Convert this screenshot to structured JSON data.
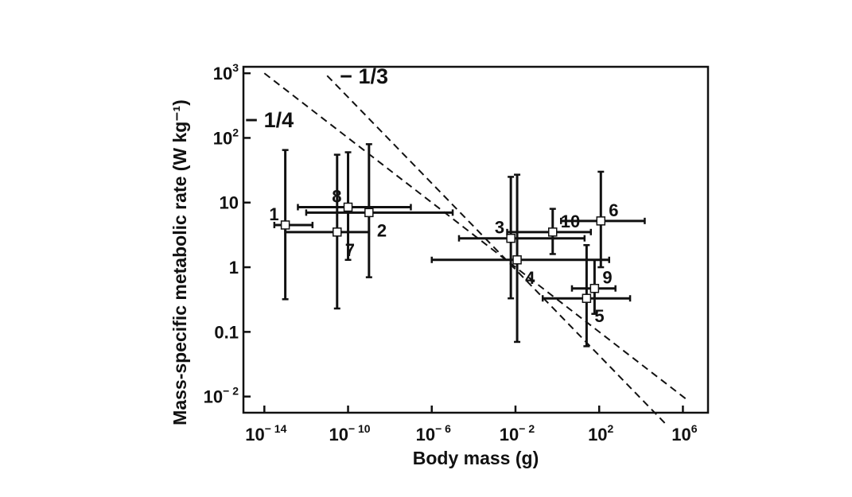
{
  "chart_data": {
    "type": "scatter",
    "title": "",
    "xlabel": "Body mass (g)",
    "ylabel": "Mass-specific metabolic rate (W kg⁻¹)",
    "xscale": "log",
    "yscale": "log",
    "xlim_log10": [
      -15,
      7.2
    ],
    "ylim_log10": [
      -2.25,
      3.1
    ],
    "x_ticks": [
      {
        "log": -14,
        "base": "10",
        "exp": "− 14"
      },
      {
        "log": -10,
        "base": "10",
        "exp": "− 10"
      },
      {
        "log": -6,
        "base": "10",
        "exp": "− 6"
      },
      {
        "log": -2,
        "base": "10",
        "exp": "− 2"
      },
      {
        "log": 2,
        "base": "10",
        "exp": "2"
      },
      {
        "log": 6,
        "base": "10",
        "exp": "6"
      }
    ],
    "y_ticks": [
      {
        "log": 3,
        "base": "10",
        "exp": "3"
      },
      {
        "log": 2,
        "base": "10",
        "exp": "2"
      },
      {
        "log": 1,
        "base": "10",
        "exp": ""
      },
      {
        "log": 0,
        "base": "1",
        "exp": ""
      },
      {
        "log": -1,
        "base": "0.1",
        "exp": ""
      },
      {
        "log": -2,
        "base": "10",
        "exp": "− 2"
      }
    ],
    "points": [
      {
        "label": "1",
        "x": 1e-13,
        "y": 4.5,
        "x_err": [
          3e-14,
          2e-12
        ],
        "y_err": [
          0.32,
          65
        ],
        "label_pos": "upper-left"
      },
      {
        "label": "2",
        "x": 1e-09,
        "y": 7.0,
        "x_err": [
          1e-12,
          1e-05
        ],
        "y_err": [
          0.7,
          80
        ],
        "label_pos": "lower-right"
      },
      {
        "label": "3",
        "x": 0.006,
        "y": 2.8,
        "x_err": [
          2e-05,
          20
        ],
        "y_err": [
          0.33,
          25
        ],
        "label_pos": "upper-left"
      },
      {
        "label": "4",
        "x": 0.012,
        "y": 1.3,
        "x_err": [
          1e-06,
          300
        ],
        "y_err": [
          0.07,
          27
        ],
        "label_pos": "lower-right"
      },
      {
        "label": "5",
        "x": 25,
        "y": 0.33,
        "x_err": [
          0.2,
          3000
        ],
        "y_err": [
          0.06,
          2.2
        ],
        "label_pos": "lower-right"
      },
      {
        "label": "6",
        "x": 120,
        "y": 5.2,
        "x_err": [
          1.5,
          15000
        ],
        "y_err": [
          1.0,
          30
        ],
        "label_pos": "upper-right"
      },
      {
        "label": "7",
        "x": 3e-11,
        "y": 3.5,
        "x_err": [
          1e-13,
          1e-09
        ],
        "y_err": [
          0.23,
          55
        ],
        "label_pos": "lower-right"
      },
      {
        "label": "8",
        "x": 1e-10,
        "y": 8.5,
        "x_err": [
          4e-13,
          1e-07
        ],
        "y_err": [
          1.3,
          60
        ],
        "label_pos": "upper-left"
      },
      {
        "label": "9",
        "x": 60,
        "y": 0.47,
        "x_err": [
          5,
          600
        ],
        "y_err": [
          0.19,
          1.3
        ],
        "label_pos": "upper-right"
      },
      {
        "label": "10",
        "x": 0.6,
        "y": 3.5,
        "x_err": [
          0.004,
          40
        ],
        "y_err": [
          1.6,
          8
        ],
        "label_pos": "upper-right"
      }
    ],
    "lines": [
      {
        "label": "− 1/4",
        "slope": -0.25,
        "intercept_log10": -0.5,
        "x_range_log10": [
          -14,
          6.2
        ]
      },
      {
        "label": "− 1/3",
        "slope": -0.333,
        "intercept_log10": -0.7,
        "x_range_log10": [
          -11,
          5.2
        ]
      }
    ],
    "grid": false,
    "legend": "none"
  }
}
